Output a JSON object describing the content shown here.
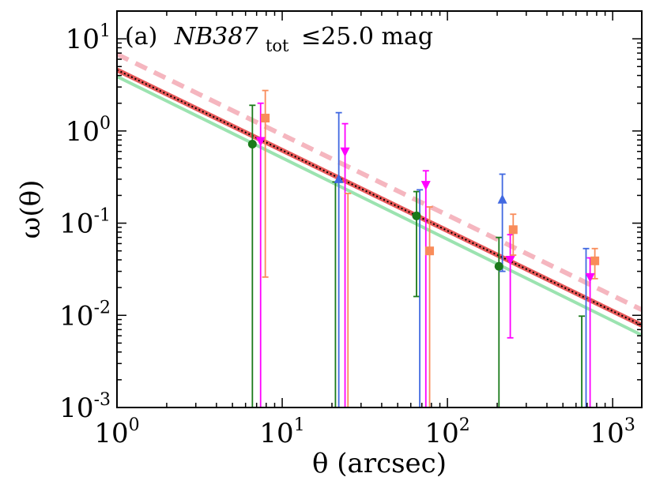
{
  "chart_data": {
    "type": "scatter",
    "panel_label": "(a)",
    "title_main": "NB387",
    "title_subscript": "tot",
    "title_condition": "≤25.0 mag",
    "xlabel": "θ (arcsec)",
    "ylabel": "ω(θ)",
    "xscale": "log",
    "yscale": "log",
    "xlim": [
      1,
      1500
    ],
    "ylim": [
      0.001,
      20
    ],
    "x_ticks": [
      {
        "value": 1,
        "base": "10",
        "exp": "0"
      },
      {
        "value": 10,
        "base": "10",
        "exp": "1"
      },
      {
        "value": 100,
        "base": "10",
        "exp": "2"
      },
      {
        "value": 1000,
        "base": "10",
        "exp": "3"
      }
    ],
    "y_ticks": [
      {
        "value": 0.001,
        "base": "10",
        "exp": "-3"
      },
      {
        "value": 0.01,
        "base": "10",
        "exp": "-2"
      },
      {
        "value": 0.1,
        "base": "10",
        "exp": "-1"
      },
      {
        "value": 1,
        "base": "10",
        "exp": "0"
      },
      {
        "value": 10,
        "base": "10",
        "exp": "1"
      }
    ],
    "lines": [
      {
        "name": "fit-green",
        "color": "#9be3b0",
        "style": "solid",
        "width": 4,
        "x": [
          1,
          1500
        ],
        "y": [
          3.9,
          0.0061
        ]
      },
      {
        "name": "fit-red",
        "color": "#e85a5a",
        "style": "solid",
        "width": 6,
        "x": [
          1,
          1500
        ],
        "y": [
          4.6,
          0.0078
        ]
      },
      {
        "name": "fit-black-dotted",
        "color": "#000000",
        "style": "dotted",
        "width": 2,
        "x": [
          1,
          1500
        ],
        "y": [
          4.6,
          0.0078
        ]
      },
      {
        "name": "fit-pink-dashed",
        "color": "#f5b6bf",
        "style": "dashed",
        "width": 6,
        "x": [
          1,
          1500
        ],
        "y": [
          6.8,
          0.0115
        ]
      }
    ],
    "series": [
      {
        "name": "green-circles",
        "color": "#1a7a1a",
        "marker": "circle",
        "points": [
          {
            "x": 6.6,
            "y": 0.72,
            "yerr_low": 0.001,
            "yerr_high": 1.9
          },
          {
            "x": 21,
            "y": 0.001,
            "yerr_low": 0.001,
            "yerr_high": 0.28
          },
          {
            "x": 65,
            "y": 0.12,
            "yerr_low": 0.016,
            "yerr_high": 0.22
          },
          {
            "x": 205,
            "y": 0.034,
            "yerr_low": 0.001,
            "yerr_high": 0.07
          },
          {
            "x": 650,
            "y": 0.001,
            "yerr_low": 0.001,
            "yerr_high": 0.0098
          }
        ]
      },
      {
        "name": "magenta-down-triangles",
        "color": "#ff00ff",
        "marker": "triangle-down",
        "points": [
          {
            "x": 7.4,
            "y": 0.78,
            "yerr_low": 0.001,
            "yerr_high": 2.0
          },
          {
            "x": 24,
            "y": 0.6,
            "yerr_low": 0.001,
            "yerr_high": 1.2
          },
          {
            "x": 74,
            "y": 0.26,
            "yerr_low": 0.001,
            "yerr_high": 0.37
          },
          {
            "x": 240,
            "y": 0.04,
            "yerr_low": 0.0057,
            "yerr_high": 0.075
          },
          {
            "x": 730,
            "y": 0.026,
            "yerr_low": 0.001,
            "yerr_high": 0.042
          }
        ]
      },
      {
        "name": "blue-up-triangles",
        "color": "#4169e1",
        "marker": "triangle-up",
        "points": [
          {
            "x": 22,
            "y": 0.3,
            "yerr_low": 0.001,
            "yerr_high": 1.58
          },
          {
            "x": 68,
            "y": 0.001,
            "yerr_low": 0.001,
            "yerr_high": 0.23
          },
          {
            "x": 215,
            "y": 0.18,
            "yerr_low": 0.03,
            "yerr_high": 0.34
          },
          {
            "x": 690,
            "y": 0.001,
            "yerr_low": 0.001,
            "yerr_high": 0.053
          }
        ]
      },
      {
        "name": "orange-squares",
        "color": "#f98c5a",
        "marker": "square",
        "points": [
          {
            "x": 7.9,
            "y": 1.38,
            "yerr_low": 0.026,
            "yerr_high": 2.75
          },
          {
            "x": 25,
            "y": 0.001,
            "yerr_low": 0.001,
            "yerr_high": 0.21
          },
          {
            "x": 78,
            "y": 0.05,
            "yerr_low": 0.001,
            "yerr_high": 0.15
          },
          {
            "x": 250,
            "y": 0.085,
            "yerr_low": 0.045,
            "yerr_high": 0.125
          },
          {
            "x": 780,
            "y": 0.039,
            "yerr_low": 0.025,
            "yerr_high": 0.053
          }
        ]
      }
    ]
  }
}
